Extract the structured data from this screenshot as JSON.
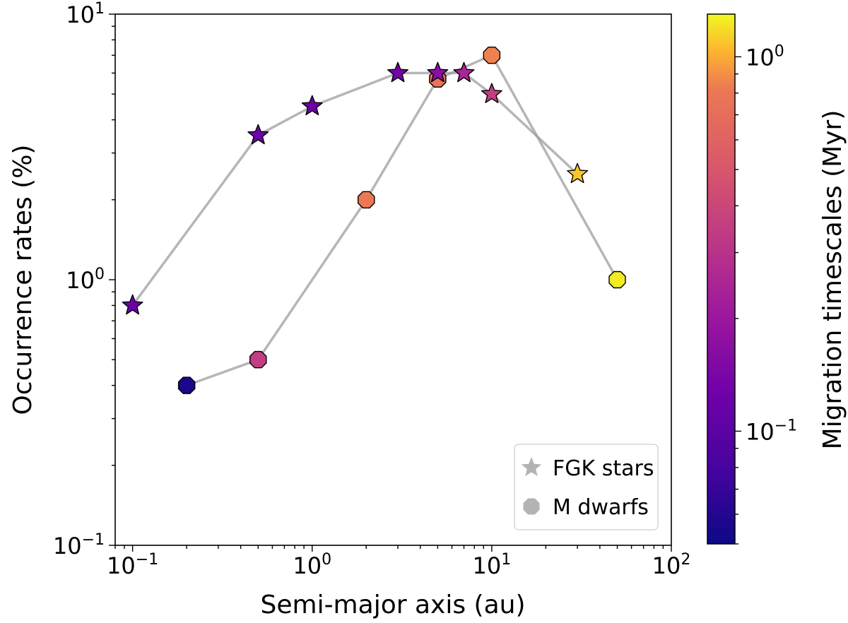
{
  "chart_data": {
    "type": "scatter",
    "xlabel": "Semi-major axis (au)",
    "ylabel": "Occurrence rates (%)",
    "colorbar_label": "Migration timescales (Myr)",
    "xscale": "log",
    "yscale": "log",
    "xlim": [
      0.08,
      100
    ],
    "ylim": [
      0.1,
      10
    ],
    "colorbar_range": [
      0.05,
      1.3
    ],
    "colormap": "plasma",
    "x_ticks": [
      {
        "value": 0.1,
        "base": "10",
        "exp": "−1"
      },
      {
        "value": 1,
        "base": "10",
        "exp": "0"
      },
      {
        "value": 10,
        "base": "10",
        "exp": "1"
      },
      {
        "value": 100,
        "base": "10",
        "exp": "2"
      }
    ],
    "y_ticks": [
      {
        "value": 0.1,
        "base": "10",
        "exp": "−1"
      },
      {
        "value": 1,
        "base": "10",
        "exp": "0"
      },
      {
        "value": 10,
        "base": "10",
        "exp": "1"
      }
    ],
    "colorbar_ticks": [
      {
        "value": 0.1,
        "base": "10",
        "exp": "−1"
      },
      {
        "value": 1,
        "base": "10",
        "exp": "0"
      }
    ],
    "legend_position": "lower-right",
    "series": [
      {
        "name": "FGK stars",
        "marker": "star",
        "x": [
          0.1,
          0.5,
          1,
          3,
          5,
          7,
          10,
          30
        ],
        "y": [
          0.8,
          3.5,
          4.5,
          6.0,
          6.0,
          6.0,
          5.0,
          2.5
        ],
        "timescale": [
          0.12,
          0.12,
          0.12,
          0.13,
          0.17,
          0.25,
          0.35,
          1.1
        ]
      },
      {
        "name": "M dwarfs",
        "marker": "octagon",
        "x": [
          0.2,
          0.5,
          2,
          5,
          10,
          50
        ],
        "y": [
          0.4,
          0.5,
          2.0,
          5.7,
          7.0,
          1.0
        ],
        "timescale": [
          0.055,
          0.35,
          0.8,
          0.75,
          0.85,
          1.25
        ]
      }
    ]
  }
}
